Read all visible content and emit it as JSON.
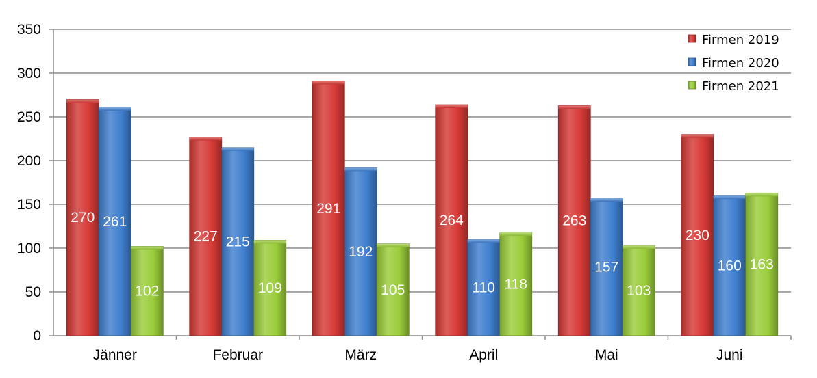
{
  "chart_data": {
    "type": "bar",
    "categories": [
      "Jänner",
      "Februar",
      "März",
      "April",
      "Mai",
      "Juni"
    ],
    "series": [
      {
        "name": "Firmen 2019",
        "values": [
          270,
          227,
          291,
          264,
          263,
          230
        ],
        "color": "#d63a36"
      },
      {
        "name": "Firmen 2020",
        "values": [
          261,
          215,
          192,
          110,
          157,
          160
        ],
        "color": "#3f7fcf"
      },
      {
        "name": "Firmen 2021",
        "values": [
          102,
          109,
          105,
          118,
          103,
          163
        ],
        "color": "#9acd3a"
      }
    ],
    "ylim": [
      0,
      350
    ],
    "yticks": [
      0,
      50,
      100,
      150,
      200,
      250,
      300,
      350
    ],
    "grid": true,
    "legend": "top-right",
    "title": "",
    "xlabel": "",
    "ylabel": ""
  }
}
